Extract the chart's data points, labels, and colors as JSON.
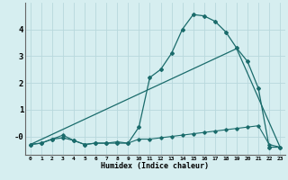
{
  "xlabel": "Humidex (Indice chaleur)",
  "background_color": "#d6eef0",
  "grid_color": "#b8d8dc",
  "line_color": "#1a6b6b",
  "x_values": [
    0,
    1,
    2,
    3,
    4,
    5,
    6,
    7,
    8,
    9,
    10,
    11,
    12,
    13,
    14,
    15,
    16,
    17,
    18,
    19,
    20,
    21,
    22,
    23
  ],
  "curve1": [
    -0.3,
    -0.25,
    -0.1,
    -0.05,
    -0.15,
    -0.3,
    -0.25,
    -0.25,
    -0.25,
    -0.25,
    0.35,
    2.2,
    2.5,
    3.1,
    4.0,
    4.55,
    4.5,
    4.3,
    3.9,
    3.3,
    2.8,
    1.8,
    -0.4,
    -0.4
  ],
  "curve2": [
    -0.3,
    -0.25,
    -0.1,
    0.05,
    -0.15,
    -0.3,
    -0.25,
    -0.25,
    -0.2,
    -0.25,
    -0.1,
    -0.1,
    -0.05,
    0.0,
    0.05,
    0.1,
    0.15,
    0.2,
    0.25,
    0.3,
    0.35,
    0.4,
    -0.3,
    -0.4
  ],
  "curve3_points": [
    [
      0,
      -0.3
    ],
    [
      19,
      3.28
    ],
    [
      23,
      -0.4
    ]
  ],
  "ylim": [
    -0.7,
    5.0
  ],
  "xlim": [
    -0.5,
    23.5
  ],
  "yticks": [
    0,
    1,
    2,
    3,
    4
  ],
  "ytick_labels": [
    "-0",
    "1",
    "2",
    "3",
    "4"
  ],
  "xticks": [
    0,
    1,
    2,
    3,
    4,
    5,
    6,
    7,
    8,
    9,
    10,
    11,
    12,
    13,
    14,
    15,
    16,
    17,
    18,
    19,
    20,
    21,
    22,
    23
  ]
}
